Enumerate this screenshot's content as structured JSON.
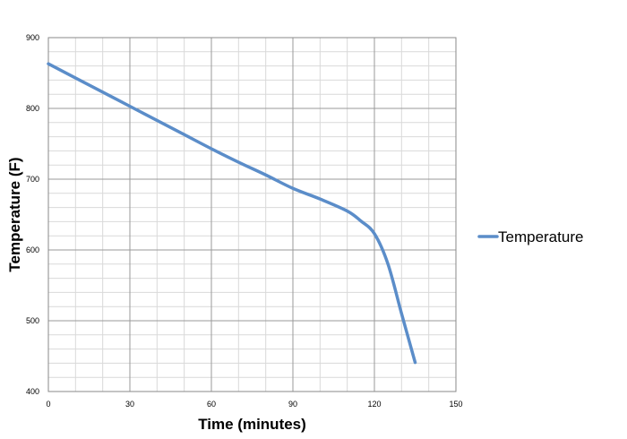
{
  "chart_data": {
    "type": "line",
    "title": "",
    "xlabel": "Time (minutes)",
    "ylabel": "Temperature (F)",
    "xlim": [
      0,
      150
    ],
    "ylim": [
      400,
      900
    ],
    "x_ticks": [
      0,
      30,
      60,
      90,
      120,
      150
    ],
    "y_ticks": [
      400,
      500,
      600,
      700,
      800,
      900
    ],
    "x_tick_labels": [
      "0",
      "30",
      "60",
      "90",
      "120",
      "150"
    ],
    "y_tick_labels": [
      "400",
      "500",
      "600",
      "700",
      "800",
      "900"
    ],
    "x_minor_step": 10,
    "y_minor_step": 20,
    "grid": true,
    "legend_position": "right",
    "series": [
      {
        "name": "Temperature",
        "color": "#5b8dc9",
        "x": [
          0,
          10,
          20,
          30,
          40,
          50,
          60,
          70,
          80,
          90,
          100,
          110,
          115,
          120,
          125,
          130,
          135
        ],
        "y": [
          863,
          843,
          823,
          803,
          783,
          763,
          743,
          724,
          706,
          687,
          672,
          655,
          641,
          623,
          580,
          510,
          441
        ]
      }
    ]
  }
}
